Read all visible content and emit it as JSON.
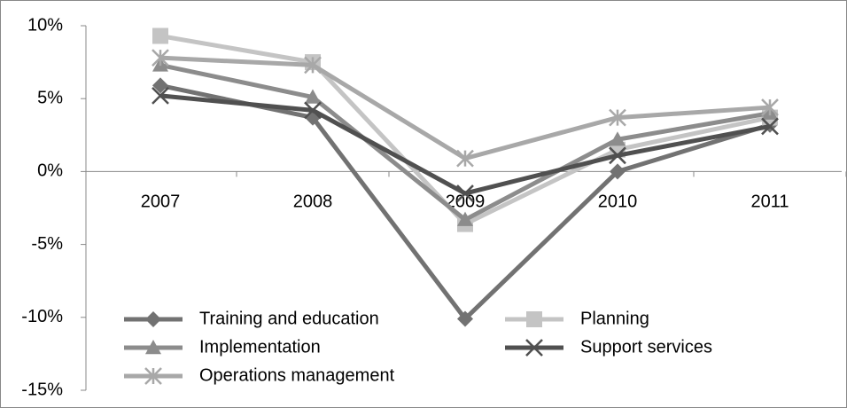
{
  "chart_data": {
    "type": "line",
    "categories": [
      "2007",
      "2008",
      "2009",
      "2010",
      "2011"
    ],
    "series": [
      {
        "name": "Training and education",
        "color": "#727272",
        "marker": "diamond",
        "values": [
          5.9,
          3.7,
          -10.1,
          0,
          3.2
        ]
      },
      {
        "name": "Planning",
        "color": "#c4c4c4",
        "marker": "square",
        "values": [
          9.3,
          7.5,
          -3.6,
          1.5,
          3.7
        ]
      },
      {
        "name": "Implementation",
        "color": "#8c8c8c",
        "marker": "triangle",
        "values": [
          7.3,
          5.1,
          -3.3,
          2.2,
          4.0
        ]
      },
      {
        "name": "Support services",
        "color": "#505050",
        "marker": "x",
        "values": [
          5.2,
          4.2,
          -1.5,
          1.1,
          3.1
        ]
      },
      {
        "name": "Operations management",
        "color": "#a8a8a8",
        "marker": "star",
        "values": [
          7.8,
          7.3,
          0.9,
          3.7,
          4.4
        ]
      }
    ],
    "ylim": [
      -15,
      10
    ],
    "yticks": [
      {
        "value": -15,
        "label": "-15%"
      },
      {
        "value": -10,
        "label": "-10%"
      },
      {
        "value": -5,
        "label": "-5%"
      },
      {
        "value": 0,
        "label": "0%"
      },
      {
        "value": 5,
        "label": "5%"
      },
      {
        "value": 10,
        "label": "10%"
      }
    ],
    "grid": false,
    "legend": "bottom"
  }
}
